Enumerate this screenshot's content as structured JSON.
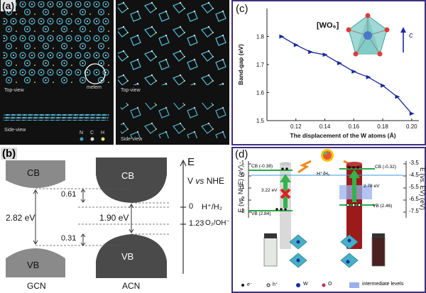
{
  "panel_a": {
    "label": "(a)",
    "top_view_left": "Top-view",
    "side_view_left": "Side-view",
    "top_view_right": "Top-view",
    "side_view_right": "Side-view",
    "melem": "melem",
    "legend": [
      "N",
      "C",
      "H"
    ],
    "legend_colors": [
      "#3aa6c8",
      "#d8d8d8",
      "#e8e070"
    ]
  },
  "panel_b": {
    "label": "(b)",
    "cb": "CB",
    "vb": "VB",
    "gap_gcn": "2.82 eV",
    "gap_acn": "1.90 eV",
    "offset_cb": "0.61",
    "offset_vb": "0.31",
    "gcn": "GCN",
    "acn": "ACN",
    "e_axis": "E",
    "v_vs": "V",
    "vs": "vs",
    "nhe": "NHE",
    "zero": "0",
    "h_couple": "H⁺/H₂",
    "o_value": "1.23",
    "o_couple": "O₂/OH⁻"
  },
  "panel_c": {
    "label": "(c)",
    "formula": "[WO₆]",
    "vector": "c",
    "chart_data": {
      "type": "line",
      "xlabel": "The displacement of the W atoms (Å)",
      "ylabel": "Band-gap (eV)",
      "xlim": [
        0.1,
        0.205
      ],
      "ylim": [
        1.5,
        1.9
      ],
      "xticks": [
        "0.12",
        "0.14",
        "0.16",
        "0.18",
        "0.20"
      ],
      "yticks": [
        "1.5",
        "1.6",
        "1.7",
        "1.8"
      ],
      "x": [
        0.11,
        0.12,
        0.13,
        0.14,
        0.15,
        0.16,
        0.17,
        0.18,
        0.19,
        0.2
      ],
      "y": [
        1.8,
        1.77,
        1.745,
        1.735,
        1.705,
        1.675,
        1.655,
        1.625,
        1.585,
        1.525
      ]
    }
  },
  "panel_d": {
    "label": "(d)",
    "left_axis": "E (vs. NHE) (eV)",
    "right_axis": "E (vs. EV) (eV)",
    "left_ticks": [
      "-1",
      "0",
      "1",
      "2",
      "3"
    ],
    "right_ticks": [
      "-3.5",
      "-4.5",
      "-5.5",
      "-6.5",
      "-7.5"
    ],
    "cb_left": "CB (-0.38)",
    "vb_left": "VB (2.84)",
    "cb_right": "CB (-0.32)",
    "vb_right": "VB (2.46)",
    "gap_left": "3.22 eV",
    "gap_right": "2.78 eV",
    "h_couple": "H⁺/H₂",
    "legend": [
      "e⁻",
      "h⁺",
      "W",
      "O",
      "intermediate levels"
    ]
  }
}
